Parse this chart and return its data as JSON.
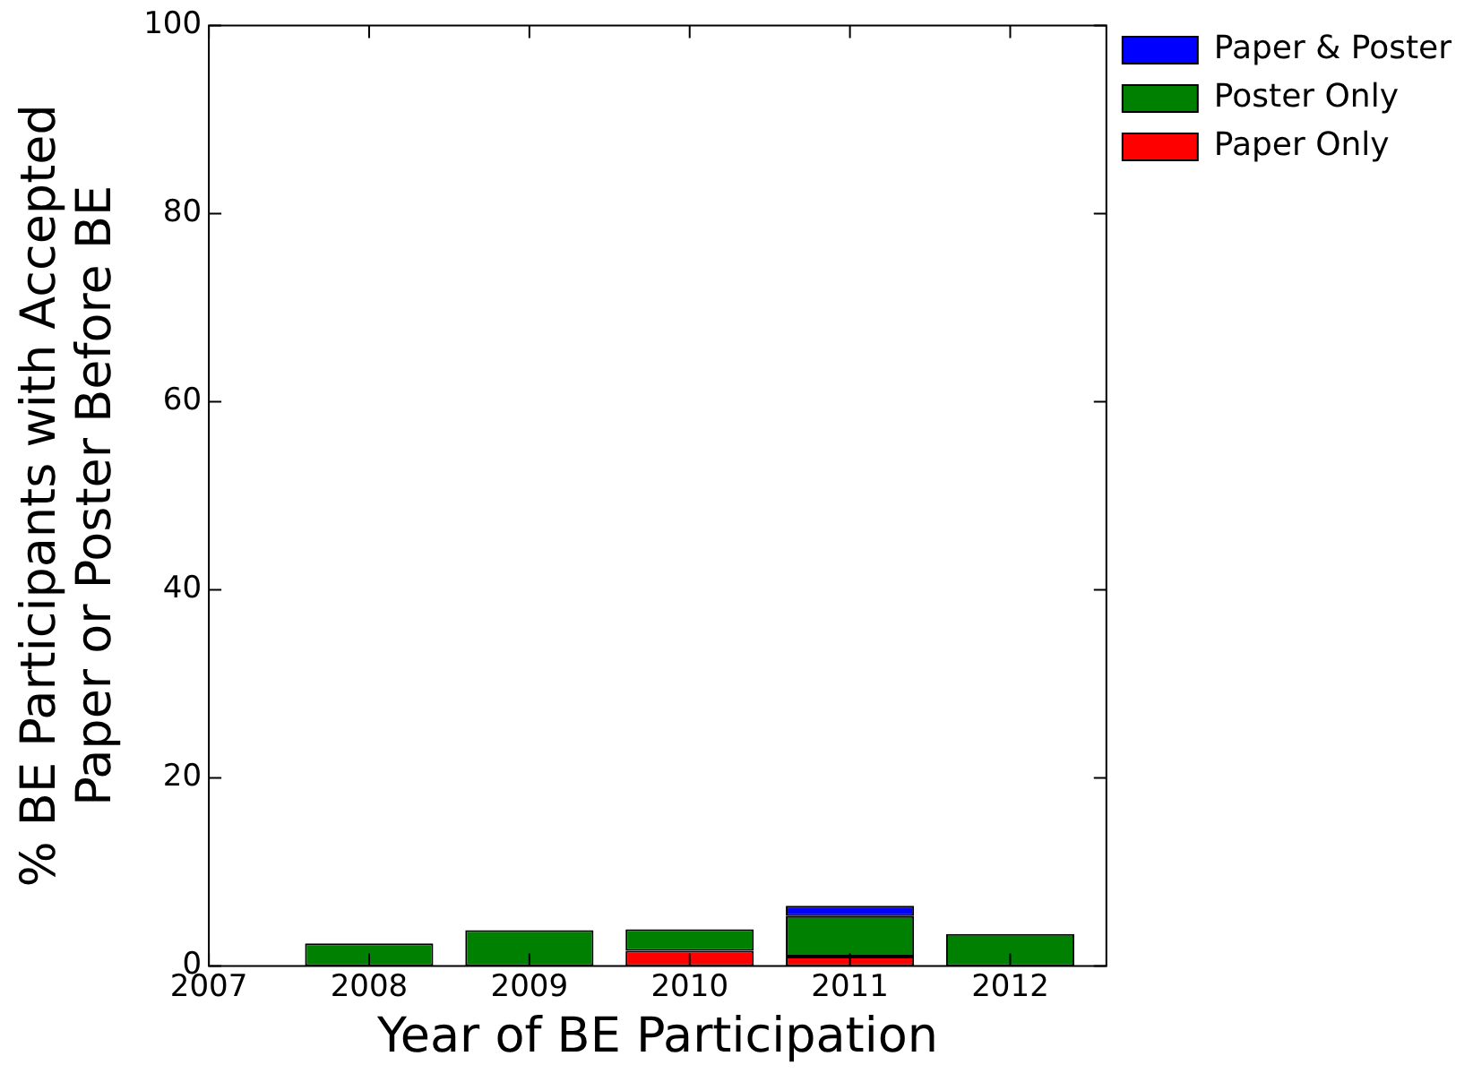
{
  "chart_data": {
    "type": "bar",
    "xlabel": "Year of BE Participation",
    "ylabel": "% BE Participants with Accepted\nPaper or Poster Before BE",
    "x": [
      2008,
      2009,
      2010,
      2011,
      2012
    ],
    "stacked": true,
    "series": [
      {
        "name": "Paper Only",
        "color": "#ff0000",
        "values": [
          0,
          0,
          1.6,
          1.0,
          0
        ]
      },
      {
        "name": "Poster Only",
        "color": "#008000",
        "values": [
          2.4,
          3.8,
          2.3,
          4.3,
          3.4
        ]
      },
      {
        "name": "Paper & Poster",
        "color": "#0000ff",
        "values": [
          0,
          0,
          0,
          1.1,
          0
        ]
      }
    ],
    "xlim": [
      2007,
      2012.6
    ],
    "xticks": [
      2007,
      2008,
      2009,
      2010,
      2011,
      2012
    ],
    "ylim": [
      0,
      100
    ],
    "yticks": [
      0,
      20,
      40,
      60,
      80,
      100
    ],
    "grid": false,
    "legend": "top right"
  }
}
